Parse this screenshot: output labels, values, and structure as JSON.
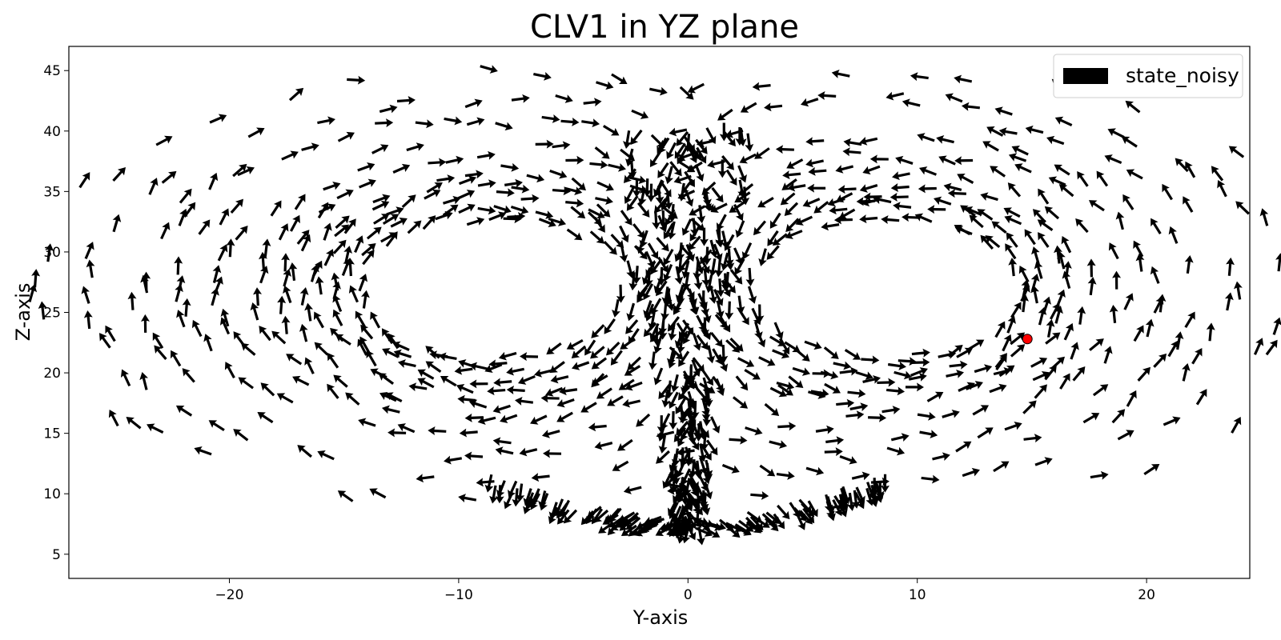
{
  "chart_data": {
    "type": "quiver",
    "title": "CLV1 in YZ plane",
    "xlabel": "Y-axis",
    "ylabel": "Z-axis",
    "xlim": [
      -27,
      24.5
    ],
    "ylim": [
      3,
      47
    ],
    "xticks": [
      -20,
      -10,
      0,
      10,
      20
    ],
    "xtick_labels": [
      "−20",
      "−10",
      "0",
      "10",
      "20"
    ],
    "yticks": [
      5,
      10,
      15,
      20,
      25,
      30,
      35,
      40,
      45
    ],
    "ytick_labels": [
      "5",
      "10",
      "15",
      "20",
      "25",
      "30",
      "35",
      "40",
      "45"
    ],
    "grid": false,
    "legend": {
      "position": "top-right",
      "entries": [
        "state_noisy"
      ]
    },
    "series": [
      {
        "name": "state_noisy",
        "kind": "quiver",
        "color": "#000000",
        "field_description": "Arrows follow a two-lobed (butterfly) attractor: left lobe centred near (-8.5, 27), right lobe near (8.5, 27); arrows spiral around each lobe and converge in a dense central column near Y=0 from Z≈7 to Z≈40.",
        "lobes": [
          {
            "center": [
              -8.5,
              27
            ],
            "orientation": "clockwise"
          },
          {
            "center": [
              8.5,
              27
            ],
            "orientation": "counterclockwise"
          }
        ]
      },
      {
        "name": "",
        "kind": "marker",
        "color": "#ff0000",
        "points": [
          [
            14.8,
            22.8
          ]
        ]
      }
    ]
  }
}
